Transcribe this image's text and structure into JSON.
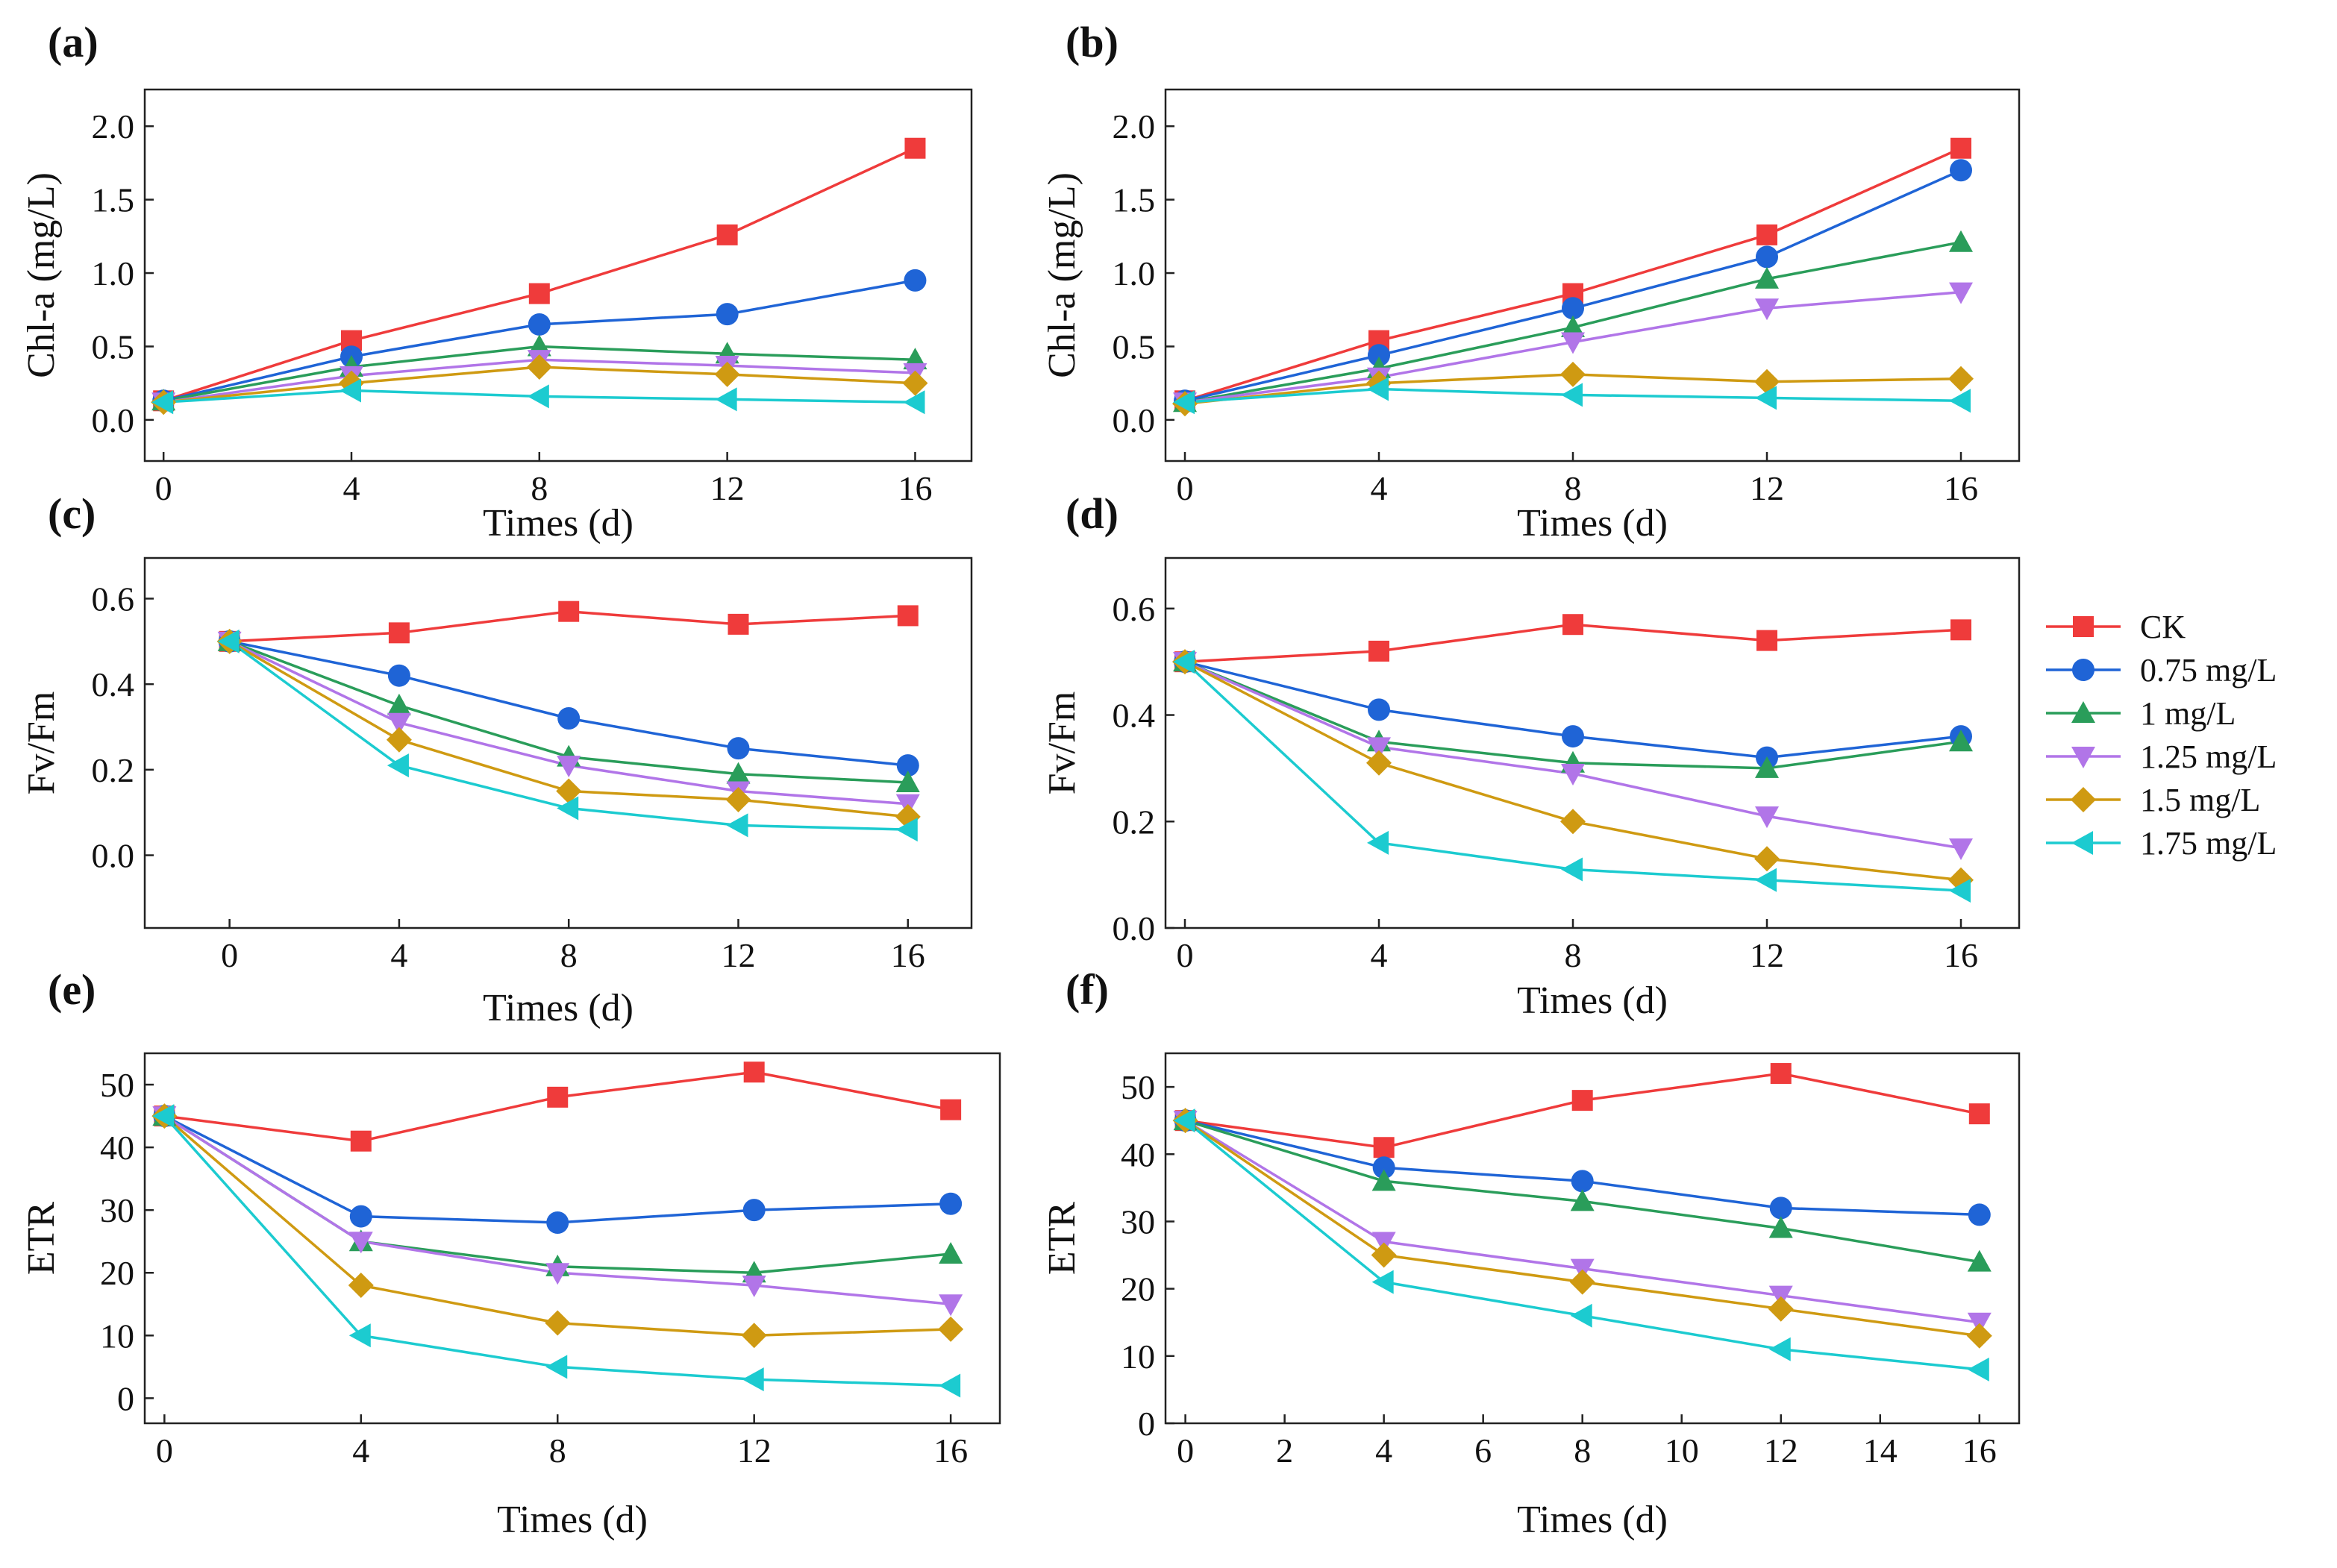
{
  "series_styles": [
    {
      "name": "CK",
      "color": "#ef3b3b",
      "marker": "square"
    },
    {
      "name": "0.75 mg/L",
      "color": "#1f64d6",
      "marker": "circle"
    },
    {
      "name": "1 mg/L",
      "color": "#2a9d5a",
      "marker": "triangle-up"
    },
    {
      "name": "1.25 mg/L",
      "color": "#b175e8",
      "marker": "triangle-down"
    },
    {
      "name": "1.5 mg/L",
      "color": "#cf9a12",
      "marker": "diamond"
    },
    {
      "name": "1.75 mg/L",
      "color": "#1ccbd0",
      "marker": "triangle-left"
    }
  ],
  "chart_data": [
    {
      "panel": "(a)",
      "type": "line",
      "title": "",
      "xlabel": "Times (d)",
      "ylabel": "Chl-a (mg/L)",
      "xlim": [
        -0.4,
        17.2
      ],
      "ylim": [
        -0.28,
        2.25
      ],
      "xticks": [
        0,
        4,
        8,
        12,
        16
      ],
      "yticks": [
        0.0,
        0.5,
        1.0,
        1.5,
        2.0
      ],
      "xtick_labels": [
        "0",
        "4",
        "8",
        "12",
        "16"
      ],
      "ytick_labels": [
        "0.0",
        "0.5",
        "1.0",
        "1.5",
        "2.0"
      ],
      "x": [
        0,
        4,
        8,
        12,
        16
      ],
      "series": [
        {
          "name": "CK",
          "values": [
            0.13,
            0.54,
            0.86,
            1.26,
            1.85
          ]
        },
        {
          "name": "0.75 mg/L",
          "values": [
            0.13,
            0.43,
            0.65,
            0.72,
            0.95
          ]
        },
        {
          "name": "1 mg/L",
          "values": [
            0.13,
            0.36,
            0.5,
            0.45,
            0.41
          ]
        },
        {
          "name": "1.25 mg/L",
          "values": [
            0.12,
            0.3,
            0.41,
            0.37,
            0.32
          ]
        },
        {
          "name": "1.5 mg/L",
          "values": [
            0.12,
            0.25,
            0.36,
            0.31,
            0.25
          ]
        },
        {
          "name": "1.75 mg/L",
          "values": [
            0.12,
            0.2,
            0.16,
            0.14,
            0.12
          ]
        }
      ]
    },
    {
      "panel": "(b)",
      "type": "line",
      "title": "",
      "xlabel": "Times (d)",
      "ylabel": "Chl-a (mg/L)",
      "xlim": [
        -0.4,
        17.2
      ],
      "ylim": [
        -0.28,
        2.25
      ],
      "xticks": [
        0,
        4,
        8,
        12,
        16
      ],
      "yticks": [
        0.0,
        0.5,
        1.0,
        1.5,
        2.0
      ],
      "xtick_labels": [
        "0",
        "4",
        "8",
        "12",
        "16"
      ],
      "ytick_labels": [
        "0.0",
        "0.5",
        "1.0",
        "1.5",
        "2.0"
      ],
      "x": [
        0,
        4,
        8,
        12,
        16
      ],
      "series": [
        {
          "name": "CK",
          "values": [
            0.13,
            0.54,
            0.86,
            1.26,
            1.85
          ]
        },
        {
          "name": "0.75 mg/L",
          "values": [
            0.13,
            0.44,
            0.76,
            1.11,
            1.7
          ]
        },
        {
          "name": "1 mg/L",
          "values": [
            0.12,
            0.35,
            0.63,
            0.96,
            1.21
          ]
        },
        {
          "name": "1.25 mg/L",
          "values": [
            0.12,
            0.29,
            0.53,
            0.76,
            0.87
          ]
        },
        {
          "name": "1.5 mg/L",
          "values": [
            0.11,
            0.25,
            0.31,
            0.26,
            0.28
          ]
        },
        {
          "name": "1.75 mg/L",
          "values": [
            0.12,
            0.21,
            0.17,
            0.15,
            0.13
          ]
        }
      ]
    },
    {
      "panel": "(c)",
      "type": "line",
      "title": "",
      "xlabel": "Times (d)",
      "ylabel": "Fv/Fm",
      "xlim": [
        -2,
        17.5
      ],
      "ylim": [
        -0.17,
        0.695
      ],
      "xticks": [
        0,
        4,
        8,
        12,
        16
      ],
      "yticks": [
        0.0,
        0.2,
        0.4,
        0.6
      ],
      "xtick_labels": [
        "0",
        "4",
        "8",
        "12",
        "16"
      ],
      "ytick_labels": [
        "0.0",
        "0.2",
        "0.4",
        "0.6"
      ],
      "x": [
        0,
        4,
        8,
        12,
        16
      ],
      "series": [
        {
          "name": "CK",
          "values": [
            0.5,
            0.52,
            0.57,
            0.54,
            0.56
          ]
        },
        {
          "name": "0.75 mg/L",
          "values": [
            0.5,
            0.42,
            0.32,
            0.25,
            0.21
          ]
        },
        {
          "name": "1 mg/L",
          "values": [
            0.5,
            0.35,
            0.23,
            0.19,
            0.17
          ]
        },
        {
          "name": "1.25 mg/L",
          "values": [
            0.5,
            0.31,
            0.21,
            0.15,
            0.12
          ]
        },
        {
          "name": "1.5 mg/L",
          "values": [
            0.5,
            0.27,
            0.15,
            0.13,
            0.09
          ]
        },
        {
          "name": "1.75 mg/L",
          "values": [
            0.5,
            0.21,
            0.11,
            0.07,
            0.06
          ]
        }
      ]
    },
    {
      "panel": "(d)",
      "type": "line",
      "title": "",
      "xlabel": "Times (d)",
      "ylabel": "Fv/Fm",
      "xlim": [
        -0.4,
        17.2
      ],
      "ylim": [
        0.0,
        0.695
      ],
      "xticks": [
        0,
        4,
        8,
        12,
        16
      ],
      "yticks": [
        0.0,
        0.2,
        0.4,
        0.6
      ],
      "xtick_labels": [
        "0",
        "4",
        "8",
        "12",
        "16"
      ],
      "ytick_labels": [
        "0.0",
        "0.2",
        "0.4",
        "0.6"
      ],
      "x": [
        0,
        4,
        8,
        12,
        16
      ],
      "series": [
        {
          "name": "CK",
          "values": [
            0.5,
            0.52,
            0.57,
            0.54,
            0.56
          ]
        },
        {
          "name": "0.75 mg/L",
          "values": [
            0.5,
            0.41,
            0.36,
            0.32,
            0.36
          ]
        },
        {
          "name": "1 mg/L",
          "values": [
            0.5,
            0.35,
            0.31,
            0.3,
            0.35
          ]
        },
        {
          "name": "1.25 mg/L",
          "values": [
            0.5,
            0.34,
            0.29,
            0.21,
            0.15
          ]
        },
        {
          "name": "1.5 mg/L",
          "values": [
            0.5,
            0.31,
            0.2,
            0.13,
            0.09
          ]
        },
        {
          "name": "1.75 mg/L",
          "values": [
            0.5,
            0.16,
            0.11,
            0.09,
            0.07
          ]
        }
      ]
    },
    {
      "panel": "(e)",
      "type": "line",
      "title": "",
      "xlabel": "Times (d)",
      "ylabel": "ETR",
      "xlim": [
        -0.4,
        17.0
      ],
      "ylim": [
        -4,
        55
      ],
      "xticks": [
        0,
        4,
        8,
        12,
        16
      ],
      "yticks": [
        0,
        10,
        20,
        30,
        40,
        50
      ],
      "xtick_labels": [
        "0",
        "4",
        "8",
        "12",
        "16"
      ],
      "ytick_labels": [
        "0",
        "10",
        "20",
        "30",
        "40",
        "50"
      ],
      "x": [
        0,
        4,
        8,
        12,
        16
      ],
      "series": [
        {
          "name": "CK",
          "values": [
            45,
            41,
            48,
            52,
            46
          ]
        },
        {
          "name": "0.75 mg/L",
          "values": [
            45,
            29,
            28,
            30,
            31
          ]
        },
        {
          "name": "1 mg/L",
          "values": [
            45,
            25,
            21,
            20,
            23
          ]
        },
        {
          "name": "1.25 mg/L",
          "values": [
            45,
            25,
            20,
            18,
            15
          ]
        },
        {
          "name": "1.5 mg/L",
          "values": [
            45,
            18,
            12,
            10,
            11
          ]
        },
        {
          "name": "1.75 mg/L",
          "values": [
            45,
            10,
            5,
            3,
            2
          ]
        }
      ]
    },
    {
      "panel": "(f)",
      "type": "line",
      "title": "",
      "xlabel": "Times (d)",
      "ylabel": "ETR",
      "xlim": [
        -0.4,
        16.8
      ],
      "ylim": [
        0,
        55
      ],
      "xticks": [
        0,
        2,
        4,
        6,
        8,
        10,
        12,
        14,
        16
      ],
      "yticks": [
        0,
        10,
        20,
        30,
        40,
        50
      ],
      "xtick_labels": [
        "0",
        "2",
        "4",
        "6",
        "8",
        "10",
        "12",
        "14",
        "16"
      ],
      "ytick_labels": [
        "0",
        "10",
        "20",
        "30",
        "40",
        "50"
      ],
      "x": [
        0,
        4,
        8,
        12,
        16
      ],
      "series": [
        {
          "name": "CK",
          "values": [
            45,
            41,
            48,
            52,
            46
          ]
        },
        {
          "name": "0.75 mg/L",
          "values": [
            45,
            38,
            36,
            32,
            31
          ]
        },
        {
          "name": "1 mg/L",
          "values": [
            45,
            36,
            33,
            29,
            24
          ]
        },
        {
          "name": "1.25 mg/L",
          "values": [
            45,
            27,
            23,
            19,
            15
          ]
        },
        {
          "name": "1.5 mg/L",
          "values": [
            45,
            25,
            21,
            17,
            13
          ]
        },
        {
          "name": "1.75 mg/L",
          "values": [
            45,
            21,
            16,
            11,
            8
          ]
        }
      ]
    }
  ],
  "legend": {
    "placement": "right-middle",
    "entries": [
      "CK",
      "0.75 mg/L",
      "1 mg/L",
      "1.25 mg/L",
      "1.5 mg/L",
      "1.75 mg/L"
    ]
  }
}
